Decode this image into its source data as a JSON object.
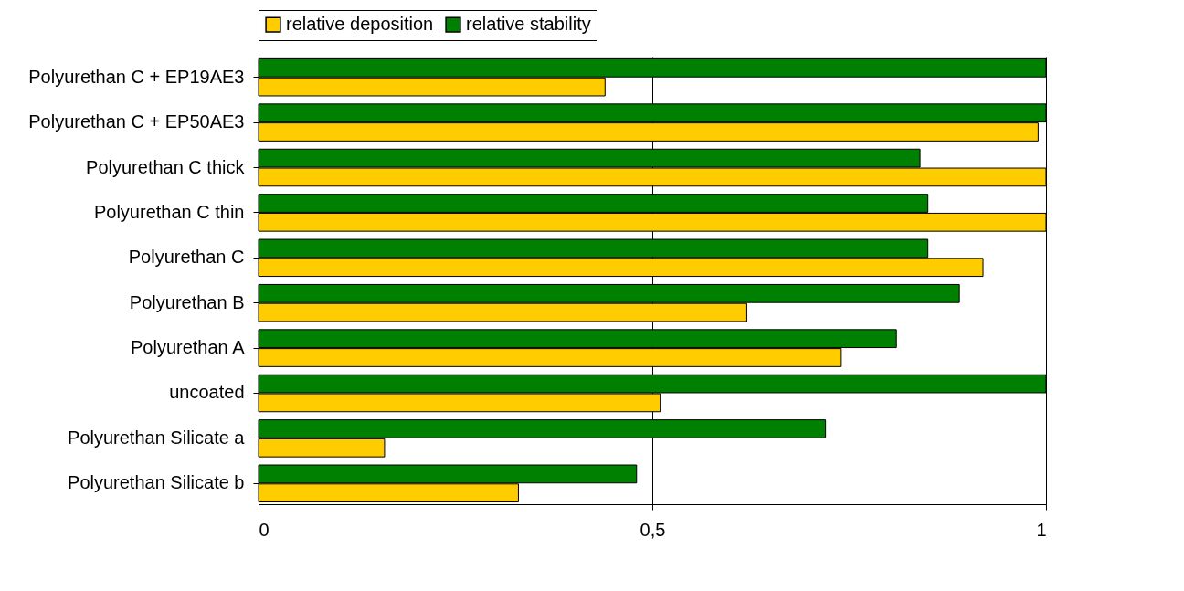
{
  "chart_data": {
    "type": "bar",
    "orientation": "horizontal",
    "categories": [
      "Polyurethan C + EP19AE3",
      "Polyurethan C + EP50AE3",
      "Polyurethan C thick",
      "Polyurethan C thin",
      "Polyurethan C",
      "Polyurethan B",
      "Polyurethan A",
      "uncoated",
      "Polyurethan Silicate a",
      "Polyurethan Silicate b"
    ],
    "series": [
      {
        "name": "relative deposition",
        "color": "#ffcc00",
        "values": [
          0.44,
          0.99,
          1.0,
          1.0,
          0.92,
          0.62,
          0.74,
          0.51,
          0.16,
          0.33
        ]
      },
      {
        "name": "relative stability",
        "color": "#008000",
        "values": [
          1.0,
          1.0,
          0.84,
          0.85,
          0.85,
          0.89,
          0.81,
          1.0,
          0.72,
          0.48
        ]
      }
    ],
    "xlim": [
      0,
      1
    ],
    "xticks": [
      0,
      {
        "value": 0.5,
        "label": "0,5"
      },
      1
    ],
    "grid": "x",
    "legend": "top"
  }
}
